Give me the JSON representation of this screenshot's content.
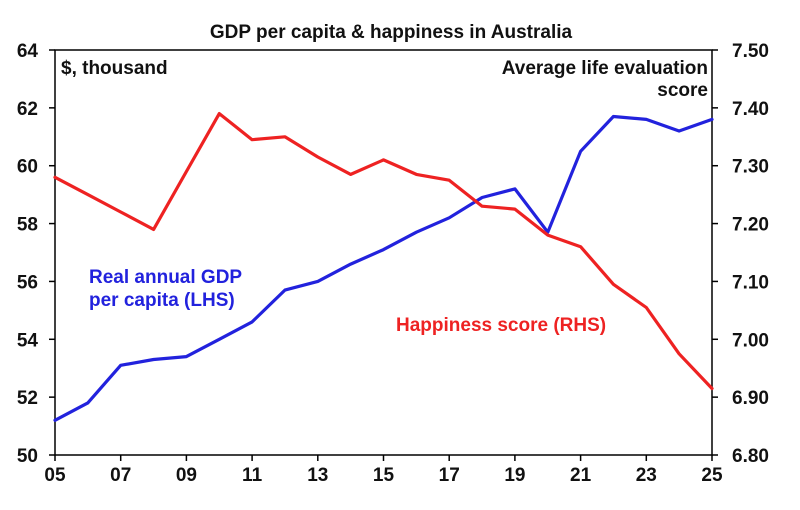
{
  "chart_data": {
    "type": "line",
    "title": "GDP per capita & happiness in Australia",
    "left_axis": {
      "unit_label": "$, thousand",
      "range": [
        50,
        64
      ],
      "ticks": [
        "50",
        "52",
        "54",
        "56",
        "58",
        "60",
        "62",
        "64"
      ]
    },
    "right_axis": {
      "unit_label_lines": [
        "Average life evaluation",
        "score"
      ],
      "range": [
        6.8,
        7.5
      ],
      "ticks": [
        "6.80",
        "6.90",
        "7.00",
        "7.10",
        "7.20",
        "7.30",
        "7.40",
        "7.50"
      ]
    },
    "x_axis": {
      "range": [
        2005,
        2025
      ],
      "ticks": [
        "05",
        "07",
        "09",
        "11",
        "13",
        "15",
        "17",
        "19",
        "21",
        "23",
        "25"
      ]
    },
    "grid": false,
    "series": [
      {
        "name_lines": [
          "Real annual GDP",
          "per capita (LHS)"
        ],
        "axis": "left",
        "color": "#2222dd",
        "x": [
          2005,
          2006,
          2007,
          2008,
          2009,
          2010,
          2011,
          2012,
          2013,
          2014,
          2015,
          2016,
          2017,
          2018,
          2019,
          2020,
          2021,
          2022,
          2023,
          2024,
          2025
        ],
        "y": [
          51.2,
          51.8,
          53.1,
          53.3,
          53.4,
          54.0,
          54.6,
          55.7,
          56.0,
          56.6,
          57.1,
          57.7,
          58.2,
          58.9,
          59.2,
          57.7,
          60.5,
          61.7,
          61.6,
          61.2,
          61.6
        ]
      },
      {
        "name_lines": [
          "Happiness score (RHS)"
        ],
        "axis": "right",
        "color": "#ee2222",
        "x": [
          2005,
          2006,
          2007,
          2008,
          2009,
          2010,
          2011,
          2012,
          2013,
          2014,
          2015,
          2016,
          2017,
          2018,
          2019,
          2020,
          2021,
          2022,
          2023,
          2024,
          2025
        ],
        "y": [
          7.28,
          7.25,
          7.22,
          7.19,
          7.29,
          7.39,
          7.345,
          7.35,
          7.315,
          7.285,
          7.31,
          7.285,
          7.275,
          7.23,
          7.225,
          7.18,
          7.16,
          7.095,
          7.055,
          6.975,
          6.915
        ]
      }
    ]
  }
}
